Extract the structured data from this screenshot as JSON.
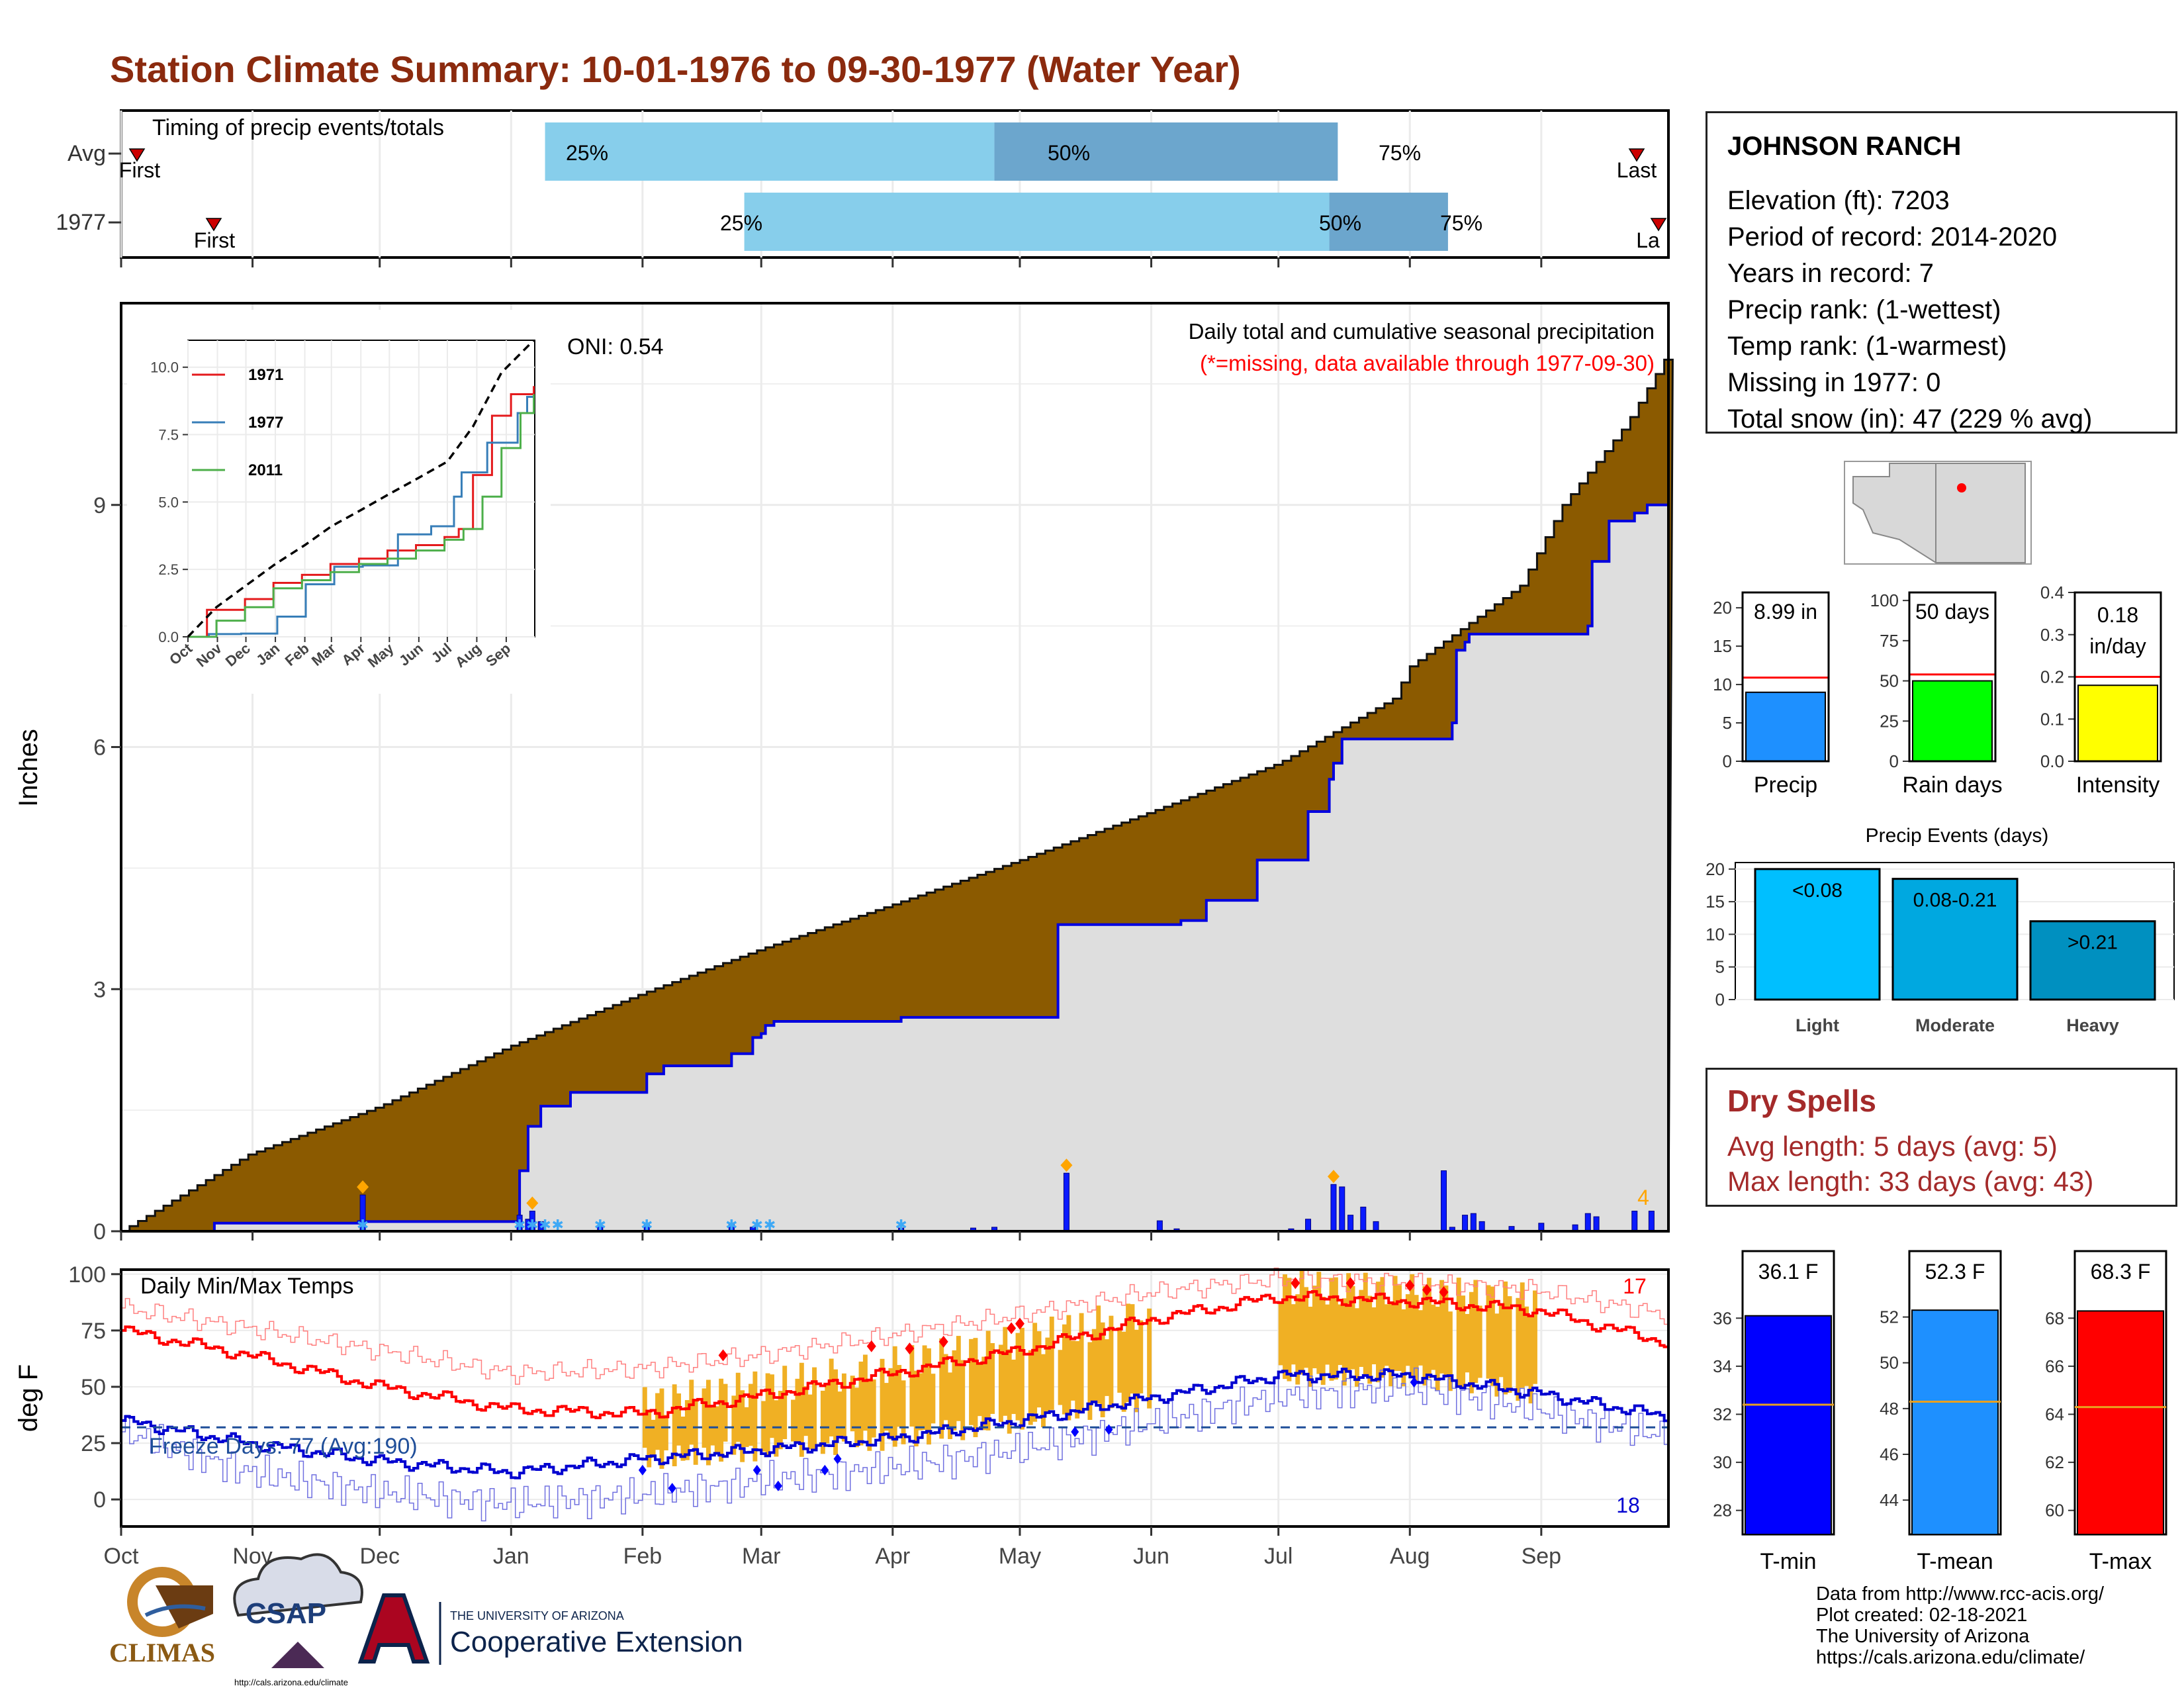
{
  "title": "Station Climate Summary: 10-01-1976 to 09-30-1977 (Water Year)",
  "colors": {
    "title": "#8B2A0E",
    "cum_precip_fill": "#8B5A00",
    "current_cum_line": "#0000E0",
    "current_cum_fill": "#DEDEDE",
    "daily_bar": "#0A1AFF",
    "timing_light": "#87CEEB",
    "timing_dark": "#6CA6CD",
    "tmax": "#FF0000",
    "tmin": "#0000D0",
    "temp_bar": "#F0B024",
    "dry_spells": "#A42A2A"
  },
  "timing_panel": {
    "label": "Timing of precip events/totals",
    "rows": [
      {
        "name": "Avg",
        "first_label": "First",
        "last_label": "Last",
        "p25_label": "25%",
        "p50_label": "50%",
        "p75_label": "75%"
      },
      {
        "name": "1977",
        "first_label": "First",
        "last_label": "La",
        "p25_label": "25%",
        "p50_label": "50%",
        "p75_label": "75%"
      }
    ]
  },
  "precip_panel": {
    "ylabel": "Inches",
    "oni": "ONI: 0.54",
    "note1": "Daily total and cumulative seasonal precipitation",
    "note2": "(*=missing, data available through 1977-09-30)",
    "corner_count": "4"
  },
  "temp_panel": {
    "ylabel": "deg F",
    "label": "Daily Min/Max Temps",
    "freeze_label": "Freeze Days: 77 (Avg:190)",
    "top_count": "17",
    "bottom_count": "18"
  },
  "months": [
    "Oct",
    "Nov",
    "Dec",
    "Jan",
    "Feb",
    "Mar",
    "Apr",
    "May",
    "Jun",
    "Jul",
    "Aug",
    "Sep"
  ],
  "inset_months": [
    "Oct",
    "Nov",
    "Dec",
    "Jan",
    "Feb",
    "Mar",
    "Apr",
    "May",
    "Jun",
    "Jul",
    "Aug",
    "Sep"
  ],
  "inset_legend": [
    {
      "name": "1971",
      "color": "#E41A1C"
    },
    {
      "name": "1977",
      "color": "#377EB8"
    },
    {
      "name": "2011",
      "color": "#4DAF4A"
    }
  ],
  "station": {
    "name": "JOHNSON RANCH",
    "lines": [
      "Elevation (ft): 7203",
      "Period of record: 2014-2020",
      "Years in record: 7",
      "Precip rank:  (1-wettest)",
      "Temp rank:  (1-warmest)",
      "Missing in 1977: 0",
      "Total snow (in): 47 (229 % avg)"
    ]
  },
  "summary_bars": [
    {
      "label": "Precip",
      "value_label": "8.99 in",
      "value": 8.99,
      "avg": 10.9,
      "ylim": [
        0,
        22
      ],
      "ticks": [
        0,
        5,
        10,
        15,
        20
      ],
      "color": "#1E90FF"
    },
    {
      "label": "Rain days",
      "value_label": "50 days",
      "value": 50,
      "avg": 54,
      "ylim": [
        0,
        105
      ],
      "ticks": [
        0,
        25,
        50,
        75,
        100
      ],
      "color": "#00FF00"
    },
    {
      "label": "Intensity",
      "value_label_1": "0.18",
      "value_label_2": "in/day",
      "value": 0.18,
      "avg": 0.2,
      "ylim": [
        0,
        0.4
      ],
      "ticks": [
        "0.0",
        "0.1",
        "0.2",
        "0.3",
        "0.4"
      ],
      "color": "#FFFF00"
    }
  ],
  "precip_events": {
    "title": "Precip Events (days)",
    "ticks": [
      0,
      5,
      10,
      15,
      20
    ],
    "bars": [
      {
        "category": "Light",
        "label": "<0.08",
        "value": 20,
        "color": "#00BFFF"
      },
      {
        "category": "Moderate",
        "label": "0.08-0.21",
        "value": 18.5,
        "color": "#00A8E0"
      },
      {
        "category": "Heavy",
        "label": ">0.21",
        "value": 12,
        "color": "#0090C0"
      }
    ]
  },
  "dry_spells": {
    "title": "Dry Spells",
    "avg_length": "Avg length: 5 days (avg: 5)",
    "max_length": "Max length: 33 days (avg: 43)"
  },
  "temp_bars": [
    {
      "label": "T-min",
      "value_label": "36.1 F",
      "value": 36.1,
      "avg": 32.4,
      "ylim": [
        27,
        37
      ],
      "ticks": [
        28,
        30,
        32,
        34,
        36
      ],
      "color": "#0000FF"
    },
    {
      "label": "T-mean",
      "value_label": "52.3 F",
      "value": 52.3,
      "avg": 48.3,
      "ylim": [
        42.5,
        53
      ],
      "ticks": [
        44,
        46,
        48,
        50,
        52
      ],
      "color": "#1E90FF"
    },
    {
      "label": "T-max",
      "value_label": "68.3 F",
      "value": 68.3,
      "avg": 64.3,
      "ylim": [
        59,
        69
      ],
      "ticks": [
        60,
        62,
        64,
        66,
        68
      ],
      "color": "#FF0000"
    }
  ],
  "footer": [
    "Data from http://www.rcc-acis.org/",
    "Plot created: 02-18-2021",
    "The University of Arizona",
    "https://cals.arizona.edu/climate/"
  ],
  "logos": {
    "climas": "CLIMAS",
    "csap": "CSAP",
    "csap_url": "http://cals.arizona.edu/climate",
    "ua_small": "THE UNIVERSITY OF ARIZONA",
    "ua_large": "Cooperative Extension"
  },
  "chart_data": [
    {
      "type": "area",
      "name_note": "main precipitation panel",
      "x": "day of water year (0=Oct 1)",
      "ylim": [
        0,
        11.5
      ],
      "yticks": [
        0,
        3,
        6,
        9
      ],
      "avg_cumulative": {
        "x": [
          0,
          30,
          61,
          92,
          123,
          151,
          182,
          212,
          243,
          273,
          300,
          304,
          330,
          340,
          355,
          364
        ],
        "y": [
          0,
          0.95,
          1.55,
          2.3,
          2.95,
          3.5,
          4.05,
          4.6,
          5.2,
          5.8,
          6.6,
          7.0,
          8.0,
          9.0,
          10.0,
          10.8
        ]
      },
      "current_cumulative": {
        "x": [
          0,
          22,
          56,
          94,
          96,
          99,
          106,
          124,
          128,
          144,
          149,
          151,
          152,
          154,
          184,
          221,
          250,
          256,
          268,
          280,
          285,
          286,
          288,
          292,
          295,
          314,
          315,
          317,
          318,
          321,
          346,
          347,
          351,
          357,
          360,
          364
        ],
        "y": [
          0,
          0.1,
          0.12,
          0.75,
          1.3,
          1.55,
          1.72,
          1.95,
          2.05,
          2.2,
          2.4,
          2.45,
          2.55,
          2.6,
          2.65,
          3.8,
          3.85,
          4.1,
          4.6,
          5.2,
          5.6,
          5.8,
          6.1,
          6.1,
          6.1,
          6.3,
          7.2,
          7.3,
          7.4,
          7.4,
          7.5,
          8.3,
          8.8,
          8.9,
          9.0,
          9.0
        ]
      },
      "daily_bars": [
        {
          "x": 57,
          "y": 0.45
        },
        {
          "x": 94,
          "y": 0.2
        },
        {
          "x": 96,
          "y": 0.15
        },
        {
          "x": 97,
          "y": 0.25
        },
        {
          "x": 99,
          "y": 0.12
        },
        {
          "x": 113,
          "y": 0.07
        },
        {
          "x": 124,
          "y": 0.08
        },
        {
          "x": 144,
          "y": 0.09
        },
        {
          "x": 149,
          "y": 0.05
        },
        {
          "x": 184,
          "y": 0.04
        },
        {
          "x": 201,
          "y": 0.04
        },
        {
          "x": 206,
          "y": 0.05
        },
        {
          "x": 223,
          "y": 0.72
        },
        {
          "x": 245,
          "y": 0.13
        },
        {
          "x": 249,
          "y": 0.03
        },
        {
          "x": 276,
          "y": 0.03
        },
        {
          "x": 280,
          "y": 0.15
        },
        {
          "x": 286,
          "y": 0.58
        },
        {
          "x": 288,
          "y": 0.55
        },
        {
          "x": 290,
          "y": 0.2
        },
        {
          "x": 293,
          "y": 0.3
        },
        {
          "x": 296,
          "y": 0.12
        },
        {
          "x": 312,
          "y": 0.75
        },
        {
          "x": 314,
          "y": 0.05
        },
        {
          "x": 317,
          "y": 0.2
        },
        {
          "x": 319,
          "y": 0.22
        },
        {
          "x": 321,
          "y": 0.12
        },
        {
          "x": 328,
          "y": 0.06
        },
        {
          "x": 335,
          "y": 0.1
        },
        {
          "x": 343,
          "y": 0.08
        },
        {
          "x": 346,
          "y": 0.22
        },
        {
          "x": 348,
          "y": 0.18
        },
        {
          "x": 357,
          "y": 0.25
        },
        {
          "x": 361,
          "y": 0.25
        }
      ]
    },
    {
      "type": "line",
      "name_note": "inset cumulative precipitation by year",
      "ylim": [
        0,
        11
      ],
      "yticks": [
        "0.0",
        "2.5",
        "5.0",
        "7.5",
        "10.0"
      ],
      "avg": {
        "x": [
          0,
          30,
          61,
          92,
          123,
          151,
          182,
          212,
          243,
          273,
          300,
          330,
          364
        ],
        "y": [
          0,
          1.1,
          1.9,
          2.7,
          3.4,
          4.1,
          4.7,
          5.3,
          5.9,
          6.5,
          7.8,
          9.8,
          11.0
        ]
      },
      "series": [
        {
          "name": "1971",
          "x": [
            0,
            20,
            60,
            90,
            120,
            150,
            180,
            210,
            240,
            270,
            285,
            300,
            320,
            340,
            364
          ],
          "y": [
            0,
            1.0,
            1.4,
            2.0,
            2.3,
            2.7,
            2.9,
            3.2,
            3.4,
            3.7,
            4.0,
            6.0,
            8.2,
            9.0,
            9.3
          ]
        },
        {
          "name": "1977",
          "x": [
            0,
            22,
            56,
            94,
            124,
            154,
            184,
            221,
            256,
            280,
            288,
            295,
            315,
            347,
            357,
            364
          ],
          "y": [
            0,
            0.1,
            0.12,
            0.75,
            1.95,
            2.6,
            2.65,
            3.8,
            4.1,
            5.2,
            6.1,
            6.1,
            7.2,
            8.3,
            8.9,
            9.0
          ]
        },
        {
          "name": "2011",
          "x": [
            0,
            30,
            60,
            90,
            120,
            150,
            180,
            210,
            240,
            270,
            290,
            310,
            330,
            350,
            364
          ],
          "y": [
            0,
            0.6,
            1.1,
            1.8,
            2.1,
            2.4,
            2.7,
            2.9,
            3.2,
            3.6,
            4.0,
            5.2,
            7.0,
            8.3,
            9.0
          ]
        }
      ]
    },
    {
      "type": "line",
      "name_note": "daily min/max temperature panel",
      "ylim": [
        -12,
        102
      ],
      "yticks": [
        0,
        25,
        50,
        75,
        100
      ],
      "freeze_line": 32,
      "tmax_avg": {
        "x": [
          0,
          30,
          61,
          92,
          123,
          151,
          182,
          212,
          243,
          273,
          304,
          334,
          364
        ],
        "y": [
          75,
          64,
          50,
          40,
          38,
          46,
          56,
          66,
          80,
          90,
          88,
          84,
          70
        ]
      },
      "tmin_avg": {
        "x": [
          0,
          30,
          61,
          92,
          123,
          151,
          182,
          212,
          243,
          273,
          304,
          334,
          364
        ],
        "y": [
          35,
          25,
          17,
          12,
          18,
          22,
          27,
          35,
          45,
          55,
          55,
          47,
          37
        ]
      },
      "tmax_range": {
        "x": [
          0,
          30,
          61,
          92,
          123,
          151,
          182,
          212,
          243,
          273,
          304,
          334,
          364
        ],
        "y": [
          85,
          76,
          66,
          56,
          58,
          64,
          73,
          82,
          92,
          98,
          96,
          93,
          82
        ]
      },
      "tmin_range": {
        "x": [
          0,
          30,
          61,
          92,
          123,
          151,
          182,
          212,
          243,
          273,
          304,
          334,
          364
        ],
        "y": [
          30,
          12,
          3,
          -2,
          2,
          8,
          14,
          22,
          34,
          46,
          50,
          40,
          28
        ]
      },
      "anomaly_bars_spans": [
        [
          123,
          243
        ],
        [
          273,
          334
        ]
      ]
    }
  ]
}
